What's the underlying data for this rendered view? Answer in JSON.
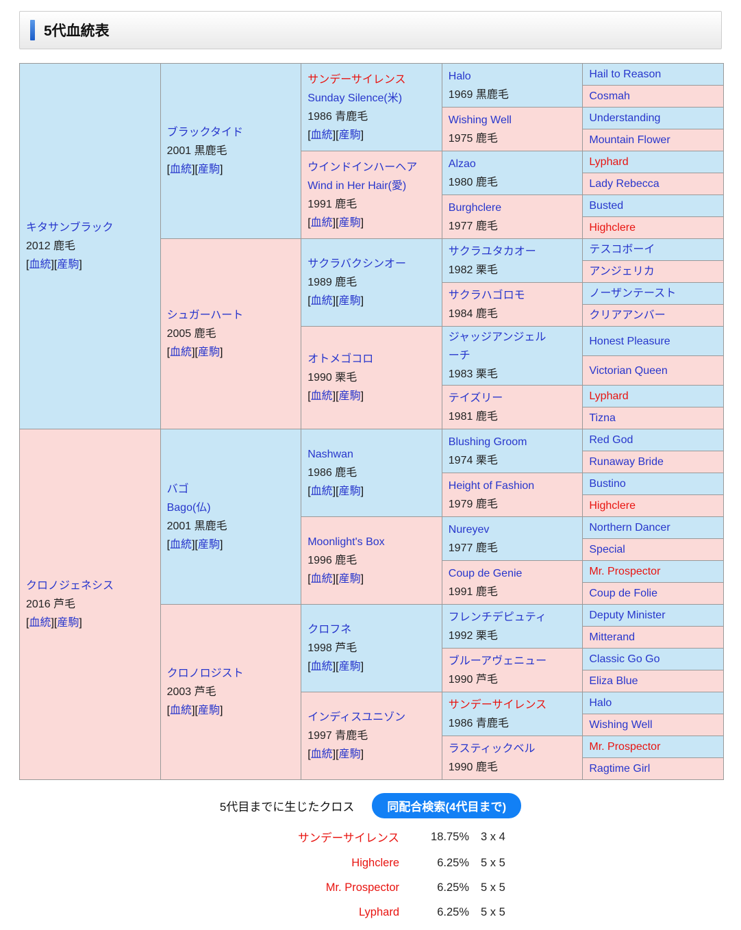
{
  "header": {
    "title": "5代血統表"
  },
  "labels": {
    "pedigree_link": "血統",
    "offspring_link": "産駒",
    "bracket_open": "[",
    "bracket_close": "]"
  },
  "colors": {
    "male_bg": "#c8e6f6",
    "female_bg": "#fbdad8",
    "link_blue": "#2736cc",
    "cross_red": "#e81410",
    "button_blue": "#1280f5",
    "border_gray": "#999999"
  },
  "pedigree": {
    "rows": [
      [
        {
          "gen": 1,
          "rowspan": 16,
          "sex": "male",
          "name": "キタサンブラック",
          "year": "2012 鹿毛",
          "links": true
        },
        {
          "gen": 2,
          "rowspan": 8,
          "sex": "male",
          "name": "ブラックタイド",
          "year": "2001 黒鹿毛",
          "links": true
        },
        {
          "gen": 3,
          "rowspan": 4,
          "sex": "male",
          "name": "サンデーサイレンス",
          "red": true,
          "en": "Sunday Silence(米)",
          "year": "1986 青鹿毛",
          "links": true
        },
        {
          "gen": 4,
          "rowspan": 2,
          "sex": "male",
          "name": "Halo",
          "year": "1969 黒鹿毛"
        },
        {
          "gen": 5,
          "rowspan": 1,
          "sex": "male",
          "name": "Hail to Reason"
        }
      ],
      [
        {
          "gen": 5,
          "rowspan": 1,
          "sex": "female",
          "name": "Cosmah"
        }
      ],
      [
        {
          "gen": 4,
          "rowspan": 2,
          "sex": "female",
          "name": "Wishing Well",
          "year": "1975 鹿毛"
        },
        {
          "gen": 5,
          "rowspan": 1,
          "sex": "male",
          "name": "Understanding"
        }
      ],
      [
        {
          "gen": 5,
          "rowspan": 1,
          "sex": "female",
          "name": "Mountain Flower"
        }
      ],
      [
        {
          "gen": 3,
          "rowspan": 4,
          "sex": "female",
          "name": "ウインドインハーヘア",
          "en": "Wind in Her Hair(愛)",
          "year": "1991 鹿毛",
          "links": true
        },
        {
          "gen": 4,
          "rowspan": 2,
          "sex": "male",
          "name": "Alzao",
          "year": "1980 鹿毛"
        },
        {
          "gen": 5,
          "rowspan": 1,
          "sex": "male",
          "name": "Lyphard",
          "red": true
        }
      ],
      [
        {
          "gen": 5,
          "rowspan": 1,
          "sex": "female",
          "name": "Lady Rebecca"
        }
      ],
      [
        {
          "gen": 4,
          "rowspan": 2,
          "sex": "female",
          "name": "Burghclere",
          "year": "1977 鹿毛"
        },
        {
          "gen": 5,
          "rowspan": 1,
          "sex": "male",
          "name": "Busted"
        }
      ],
      [
        {
          "gen": 5,
          "rowspan": 1,
          "sex": "female",
          "name": "Highclere",
          "red": true
        }
      ],
      [
        {
          "gen": 2,
          "rowspan": 8,
          "sex": "female",
          "name": "シュガーハート",
          "year": "2005 鹿毛",
          "links": true
        },
        {
          "gen": 3,
          "rowspan": 4,
          "sex": "male",
          "name": "サクラバクシンオー",
          "year": "1989 鹿毛",
          "links": true
        },
        {
          "gen": 4,
          "rowspan": 2,
          "sex": "male",
          "name": "サクラユタカオー",
          "year": "1982 栗毛"
        },
        {
          "gen": 5,
          "rowspan": 1,
          "sex": "male",
          "name": "テスコボーイ"
        }
      ],
      [
        {
          "gen": 5,
          "rowspan": 1,
          "sex": "female",
          "name": "アンジェリカ"
        }
      ],
      [
        {
          "gen": 4,
          "rowspan": 2,
          "sex": "female",
          "name": "サクラハゴロモ",
          "year": "1984 鹿毛"
        },
        {
          "gen": 5,
          "rowspan": 1,
          "sex": "male",
          "name": "ノーザンテースト"
        }
      ],
      [
        {
          "gen": 5,
          "rowspan": 1,
          "sex": "female",
          "name": "クリアアンバー"
        }
      ],
      [
        {
          "gen": 3,
          "rowspan": 4,
          "sex": "female",
          "name": "オトメゴコロ",
          "year": "1990 栗毛",
          "links": true
        },
        {
          "gen": 4,
          "rowspan": 2,
          "sex": "male",
          "name": "ジャッジアンジェルーチ",
          "year": "1983 栗毛"
        },
        {
          "gen": 5,
          "rowspan": 1,
          "sex": "male",
          "name": "Honest Pleasure"
        }
      ],
      [
        {
          "gen": 5,
          "rowspan": 1,
          "sex": "female",
          "name": "Victorian Queen"
        }
      ],
      [
        {
          "gen": 4,
          "rowspan": 2,
          "sex": "female",
          "name": "テイズリー",
          "year": "1981 鹿毛"
        },
        {
          "gen": 5,
          "rowspan": 1,
          "sex": "male",
          "name": "Lyphard",
          "red": true
        }
      ],
      [
        {
          "gen": 5,
          "rowspan": 1,
          "sex": "female",
          "name": "Tizna"
        }
      ],
      [
        {
          "gen": 1,
          "rowspan": 16,
          "sex": "female",
          "name": "クロノジェネシス",
          "year": "2016 芦毛",
          "links": true
        },
        {
          "gen": 2,
          "rowspan": 8,
          "sex": "male",
          "name": "バゴ",
          "en": "Bago(仏)",
          "year": "2001 黒鹿毛",
          "links": true
        },
        {
          "gen": 3,
          "rowspan": 4,
          "sex": "male",
          "name": "Nashwan",
          "year": "1986 鹿毛",
          "links": true
        },
        {
          "gen": 4,
          "rowspan": 2,
          "sex": "male",
          "name": "Blushing Groom",
          "year": "1974 栗毛"
        },
        {
          "gen": 5,
          "rowspan": 1,
          "sex": "male",
          "name": "Red God"
        }
      ],
      [
        {
          "gen": 5,
          "rowspan": 1,
          "sex": "female",
          "name": "Runaway Bride"
        }
      ],
      [
        {
          "gen": 4,
          "rowspan": 2,
          "sex": "female",
          "name": "Height of Fashion",
          "year": "1979 鹿毛"
        },
        {
          "gen": 5,
          "rowspan": 1,
          "sex": "male",
          "name": "Bustino"
        }
      ],
      [
        {
          "gen": 5,
          "rowspan": 1,
          "sex": "female",
          "name": "Highclere",
          "red": true
        }
      ],
      [
        {
          "gen": 3,
          "rowspan": 4,
          "sex": "female",
          "name": "Moonlight's Box",
          "year": "1996 鹿毛",
          "links": true
        },
        {
          "gen": 4,
          "rowspan": 2,
          "sex": "male",
          "name": "Nureyev",
          "year": "1977 鹿毛"
        },
        {
          "gen": 5,
          "rowspan": 1,
          "sex": "male",
          "name": "Northern Dancer"
        }
      ],
      [
        {
          "gen": 5,
          "rowspan": 1,
          "sex": "female",
          "name": "Special"
        }
      ],
      [
        {
          "gen": 4,
          "rowspan": 2,
          "sex": "female",
          "name": "Coup de Genie",
          "year": "1991 鹿毛"
        },
        {
          "gen": 5,
          "rowspan": 1,
          "sex": "male",
          "name": "Mr. Prospector",
          "red": true
        }
      ],
      [
        {
          "gen": 5,
          "rowspan": 1,
          "sex": "female",
          "name": "Coup de Folie"
        }
      ],
      [
        {
          "gen": 2,
          "rowspan": 8,
          "sex": "female",
          "name": "クロノロジスト",
          "year": "2003 芦毛",
          "links": true
        },
        {
          "gen": 3,
          "rowspan": 4,
          "sex": "male",
          "name": "クロフネ",
          "year": "1998 芦毛",
          "links": true
        },
        {
          "gen": 4,
          "rowspan": 2,
          "sex": "male",
          "name": "フレンチデピュティ",
          "year": "1992 栗毛"
        },
        {
          "gen": 5,
          "rowspan": 1,
          "sex": "male",
          "name": "Deputy Minister"
        }
      ],
      [
        {
          "gen": 5,
          "rowspan": 1,
          "sex": "female",
          "name": "Mitterand"
        }
      ],
      [
        {
          "gen": 4,
          "rowspan": 2,
          "sex": "female",
          "name": "ブルーアヴェニュー",
          "year": "1990 芦毛"
        },
        {
          "gen": 5,
          "rowspan": 1,
          "sex": "male",
          "name": "Classic Go Go"
        }
      ],
      [
        {
          "gen": 5,
          "rowspan": 1,
          "sex": "female",
          "name": "Eliza Blue"
        }
      ],
      [
        {
          "gen": 3,
          "rowspan": 4,
          "sex": "female",
          "name": "インディスユニゾン",
          "year": "1997 青鹿毛",
          "links": true
        },
        {
          "gen": 4,
          "rowspan": 2,
          "sex": "male",
          "name": "サンデーサイレンス",
          "red": true,
          "year": "1986 青鹿毛"
        },
        {
          "gen": 5,
          "rowspan": 1,
          "sex": "male",
          "name": "Halo"
        }
      ],
      [
        {
          "gen": 5,
          "rowspan": 1,
          "sex": "female",
          "name": "Wishing Well"
        }
      ],
      [
        {
          "gen": 4,
          "rowspan": 2,
          "sex": "female",
          "name": "ラスティックベル",
          "year": "1990 鹿毛"
        },
        {
          "gen": 5,
          "rowspan": 1,
          "sex": "male",
          "name": "Mr. Prospector",
          "red": true
        }
      ],
      [
        {
          "gen": 5,
          "rowspan": 1,
          "sex": "female",
          "name": "Ragtime Girl"
        }
      ]
    ]
  },
  "crosses": {
    "label": "5代目までに生じたクロス",
    "button_label": "同配合検索(4代目まで)",
    "items": [
      {
        "name": "サンデーサイレンス",
        "percent": "18.75%",
        "pattern": "3 x 4"
      },
      {
        "name": "Highclere",
        "percent": "6.25%",
        "pattern": "5 x 5"
      },
      {
        "name": "Mr. Prospector",
        "percent": "6.25%",
        "pattern": "5 x 5"
      },
      {
        "name": "Lyphard",
        "percent": "6.25%",
        "pattern": "5 x 5"
      }
    ]
  }
}
